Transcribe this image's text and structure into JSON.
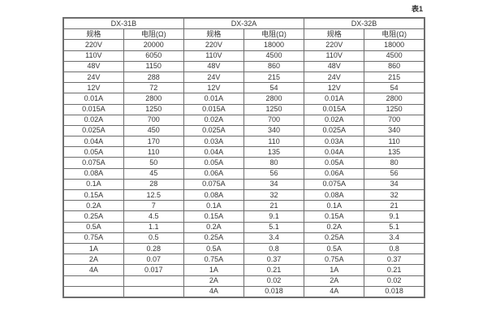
{
  "caption": "表1",
  "colors": {
    "border": "#6e6e6e",
    "text": "#333333",
    "background": "#ffffff"
  },
  "table": {
    "groups": [
      {
        "name": "DX-31B",
        "col_headers": [
          "规格",
          "电阻(Ω)"
        ]
      },
      {
        "name": "DX-32A",
        "col_headers": [
          "规格",
          "电阻(Ω)"
        ]
      },
      {
        "name": "DX-32B",
        "col_headers": [
          "规格",
          "电阻(Ω)"
        ]
      }
    ],
    "rows": [
      [
        "220V",
        "20000",
        "220V",
        "18000",
        "220V",
        "18000"
      ],
      [
        "110V",
        "6050",
        "110V",
        "4500",
        "110V",
        "4500"
      ],
      [
        "48V",
        "1150",
        "48V",
        "860",
        "48V",
        "860"
      ],
      [
        "24V",
        "288",
        "24V",
        "215",
        "24V",
        "215"
      ],
      [
        "12V",
        "72",
        "12V",
        "54",
        "12V",
        "54"
      ],
      [
        "0.01A",
        "2800",
        "0.01A",
        "2800",
        "0.01A",
        "2800"
      ],
      [
        "0.015A",
        "1250",
        "0.015A",
        "1250",
        "0.015A",
        "1250"
      ],
      [
        "0.02A",
        "700",
        "0.02A",
        "700",
        "0.02A",
        "700"
      ],
      [
        "0.025A",
        "450",
        "0.025A",
        "340",
        "0.025A",
        "340"
      ],
      [
        "0.04A",
        "170",
        "0.03A",
        "110",
        "0.03A",
        "110"
      ],
      [
        "0.05A",
        "110",
        "0.04A",
        "135",
        "0.04A",
        "135"
      ],
      [
        "0.075A",
        "50",
        "0.05A",
        "80",
        "0.05A",
        "80"
      ],
      [
        "0.08A",
        "45",
        "0.06A",
        "56",
        "0.06A",
        "56"
      ],
      [
        "0.1A",
        "28",
        "0.075A",
        "34",
        "0.075A",
        "34"
      ],
      [
        "0.15A",
        "12.5",
        "0.08A",
        "32",
        "0.08A",
        "32"
      ],
      [
        "0.2A",
        "7",
        "0.1A",
        "21",
        "0.1A",
        "21"
      ],
      [
        "0.25A",
        "4.5",
        "0.15A",
        "9.1",
        "0.15A",
        "9.1"
      ],
      [
        "0.5A",
        "1.1",
        "0.2A",
        "5.1",
        "0.2A",
        "5.1"
      ],
      [
        "0.75A",
        "0.5",
        "0.25A",
        "3.4",
        "0.25A",
        "3.4"
      ],
      [
        "1A",
        "0.28",
        "0.5A",
        "0.8",
        "0.5A",
        "0.8"
      ],
      [
        "2A",
        "0.07",
        "0.75A",
        "0.37",
        "0.75A",
        "0.37"
      ],
      [
        "4A",
        "0.017",
        "1A",
        "0.21",
        "1A",
        "0.21"
      ],
      [
        "",
        "",
        "2A",
        "0.02",
        "2A",
        "0.02"
      ],
      [
        "",
        "",
        "4A",
        "0.018",
        "4A",
        "0.018"
      ]
    ]
  }
}
